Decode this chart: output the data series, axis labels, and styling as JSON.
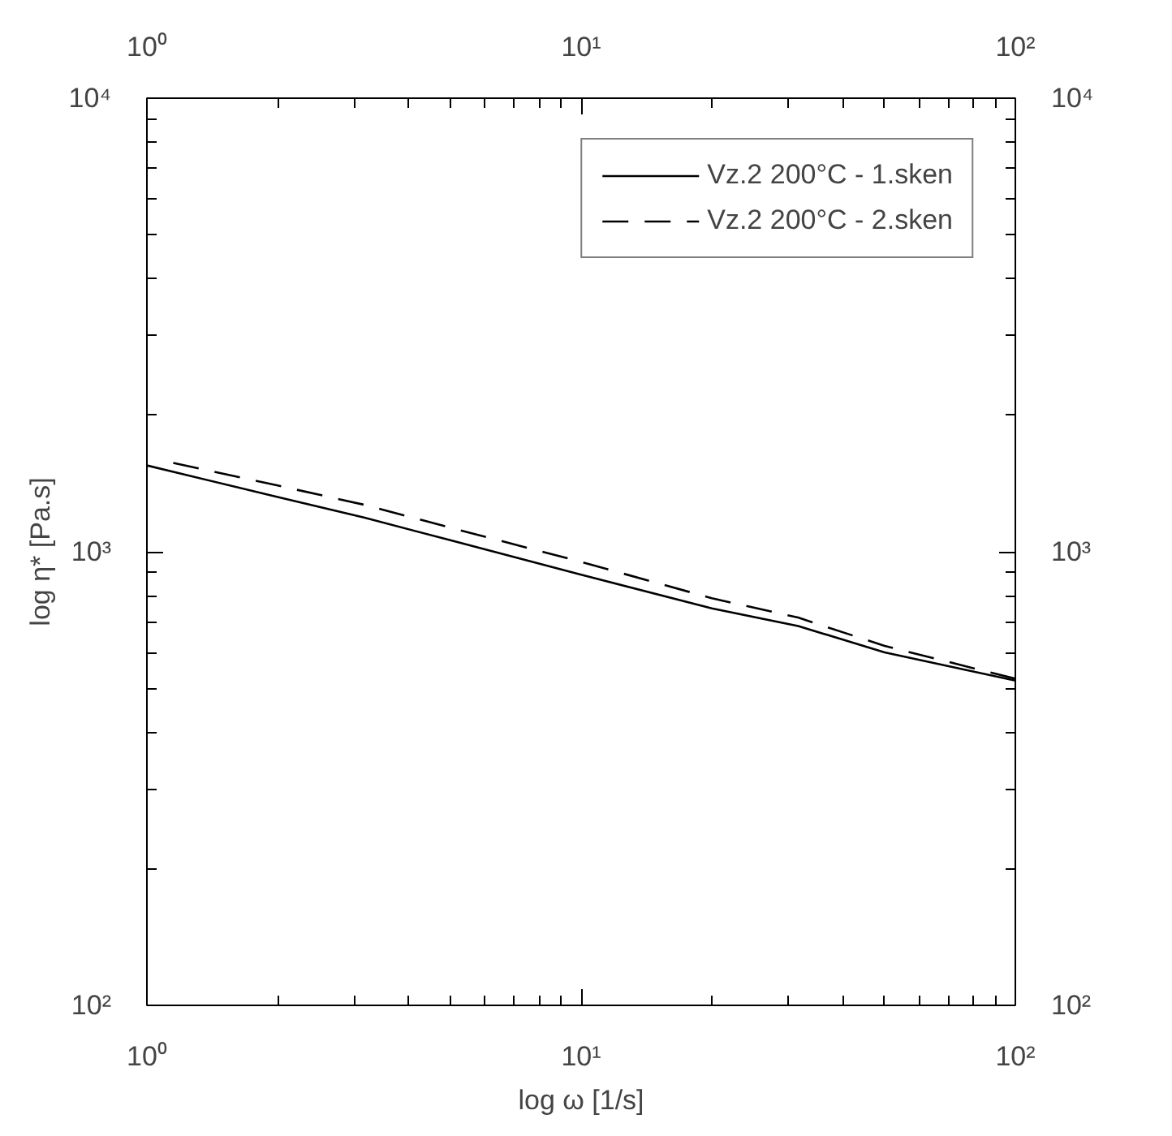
{
  "chart_data": {
    "type": "line",
    "xlabel": "log ω [1/s]",
    "ylabel": "log η* [Pa.s]",
    "xlim": [
      1,
      100
    ],
    "ylim": [
      100,
      10000
    ],
    "xticks": [
      {
        "value": 1,
        "label": "10⁰"
      },
      {
        "value": 10,
        "label": "10¹"
      },
      {
        "value": 100,
        "label": "10²"
      }
    ],
    "yticks": [
      {
        "value": 100,
        "label": "10²"
      },
      {
        "value": 1000,
        "label": "10³"
      },
      {
        "value": 10000,
        "label": "10⁴"
      }
    ],
    "log": "xy",
    "grid": false,
    "legend": "top right",
    "marker": "none",
    "series": [
      {
        "name": "Vz.2 200°C - 1.sken",
        "color": "#000000",
        "line_style": "solid",
        "x": [
          1,
          2,
          3.16,
          5,
          10,
          20,
          31.6,
          50,
          100
        ],
        "values": [
          1550,
          1320,
          1190,
          1060,
          890,
          750,
          686,
          600,
          520
        ]
      },
      {
        "name": "Vz.2 200°C - 2.sken",
        "color": "#000000",
        "line_style": "dashed",
        "x": [
          1.15,
          2,
          3.16,
          5,
          10,
          20,
          31.6,
          50,
          100
        ],
        "values": [
          1570,
          1400,
          1270,
          1130,
          950,
          790,
          716,
          620,
          525
        ]
      }
    ]
  }
}
